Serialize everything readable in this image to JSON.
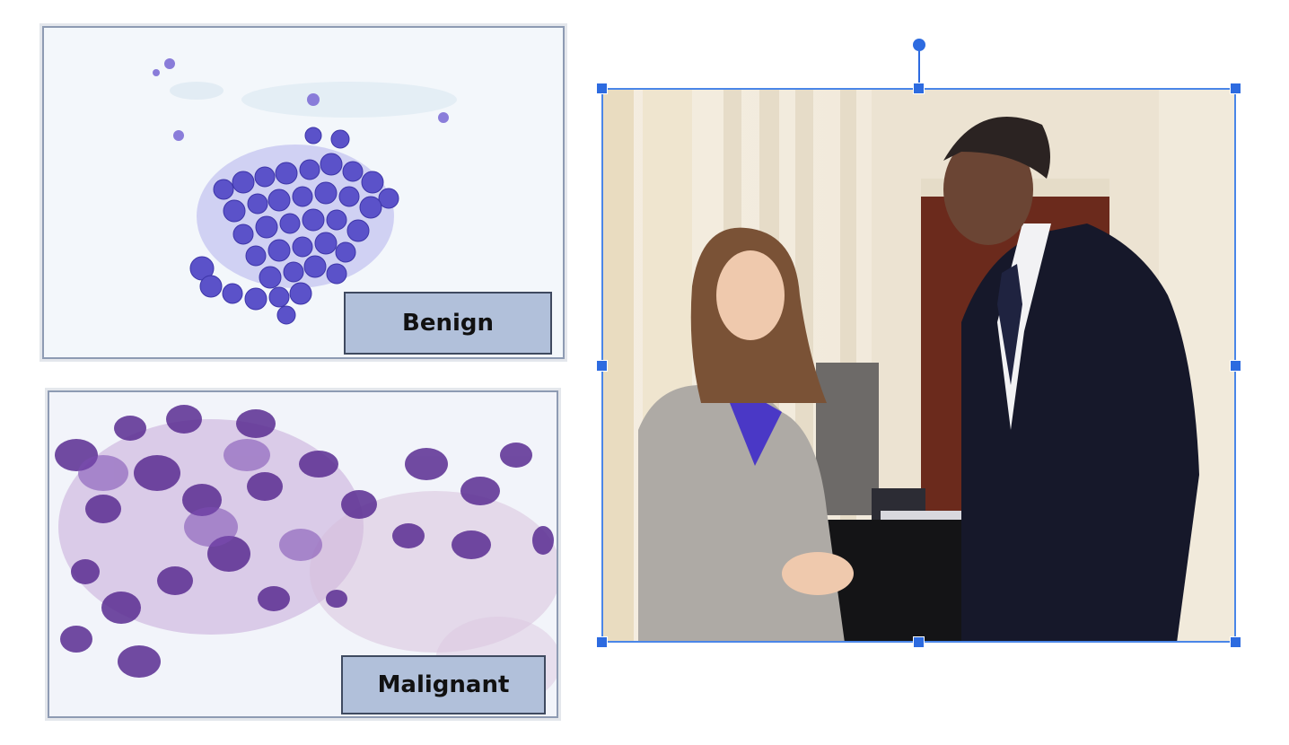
{
  "images": {
    "benign": {
      "label": "Benign",
      "caption_bg": "#b1c0da"
    },
    "malignant": {
      "label": "Malignant",
      "caption_bg": "#b1c0da"
    }
  },
  "selection": {
    "color": "#2d6be0"
  }
}
